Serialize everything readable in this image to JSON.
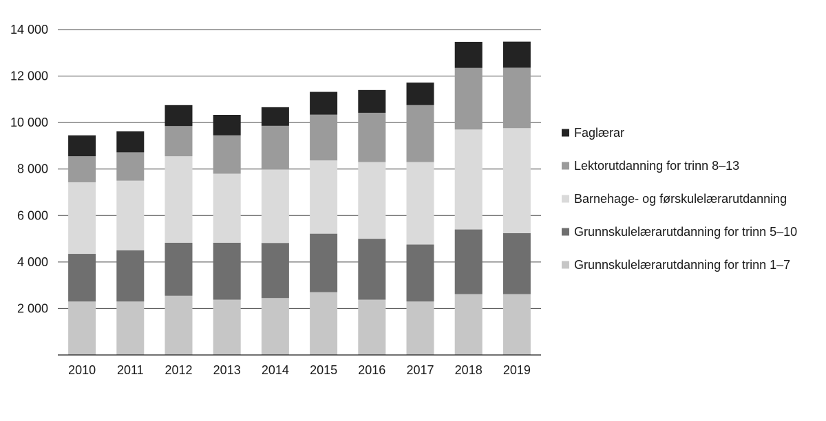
{
  "chart_data": {
    "type": "bar",
    "stacked": true,
    "title": "",
    "xlabel": "",
    "ylabel": "",
    "categories": [
      "2010",
      "2011",
      "2012",
      "2013",
      "2014",
      "2015",
      "2016",
      "2017",
      "2018",
      "2019"
    ],
    "ylim": [
      0,
      14000
    ],
    "yticks": [
      {
        "value": 2000,
        "label": "2 000"
      },
      {
        "value": 4000,
        "label": "4 000"
      },
      {
        "value": 6000,
        "label": "6 000"
      },
      {
        "value": 8000,
        "label": "8 000"
      },
      {
        "value": 10000,
        "label": "10 000"
      },
      {
        "value": 12000,
        "label": "12 000"
      },
      {
        "value": 14000,
        "label": "14 000"
      }
    ],
    "grid": "horizontal",
    "legend_position": "right",
    "series": [
      {
        "name": "Grunnskulelærarutdanning for trinn 1–7",
        "color": "#c6c6c6",
        "values": [
          2300,
          2300,
          2550,
          2380,
          2450,
          2700,
          2380,
          2300,
          2620,
          2620
        ]
      },
      {
        "name": "Grunnskulelærarutdanning for trinn 5–10",
        "color": "#6f6f6f",
        "values": [
          2050,
          2200,
          2280,
          2450,
          2370,
          2520,
          2620,
          2450,
          2780,
          2620
        ]
      },
      {
        "name": "Barnehage- og førskulelærarutdanning",
        "color": "#dadada",
        "values": [
          3080,
          3000,
          3720,
          2970,
          3160,
          3150,
          3300,
          3550,
          4300,
          4520
        ]
      },
      {
        "name": "Lektorutdanning for trinn 8–13",
        "color": "#9b9b9b",
        "values": [
          1120,
          1220,
          1300,
          1650,
          1880,
          1970,
          2120,
          2450,
          2650,
          2600
        ]
      },
      {
        "name": "Faglærar",
        "color": "#232323",
        "values": [
          900,
          900,
          900,
          880,
          800,
          980,
          980,
          970,
          1120,
          1120
        ]
      }
    ],
    "legend_order": [
      4,
      3,
      2,
      1,
      0
    ]
  }
}
